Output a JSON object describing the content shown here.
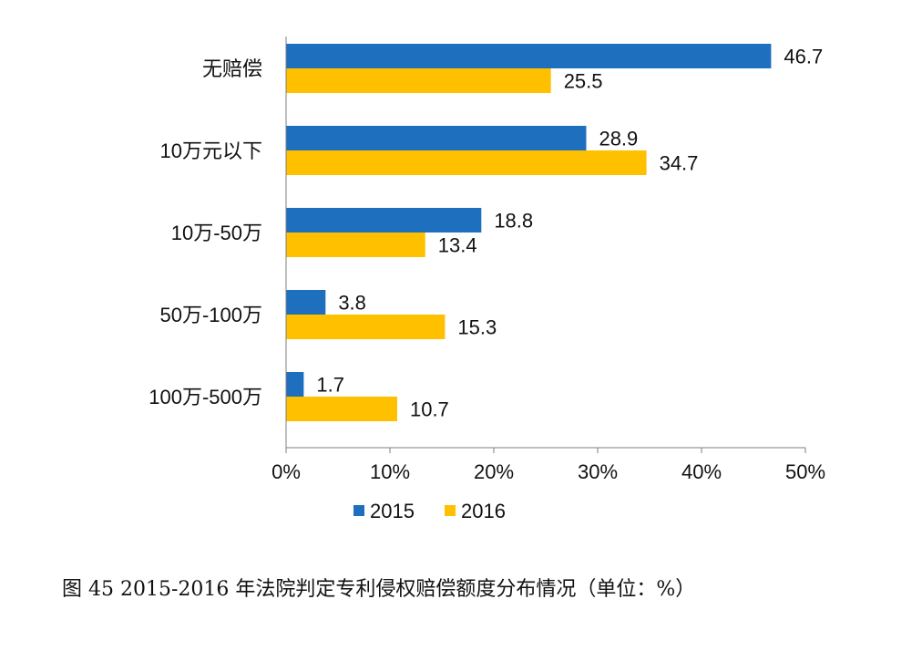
{
  "chart_data": {
    "type": "bar",
    "orientation": "horizontal",
    "categories": [
      "无赔偿",
      "10万元以下",
      "10万-50万",
      "50万-100万",
      "100万-500万"
    ],
    "series": [
      {
        "name": "2015",
        "color": "#1f6fbf",
        "values": [
          46.7,
          28.9,
          18.8,
          3.8,
          1.7
        ]
      },
      {
        "name": "2016",
        "color": "#ffc000",
        "values": [
          25.5,
          34.7,
          13.4,
          15.3,
          10.7
        ]
      }
    ],
    "value_labels": {
      "2015": [
        "46.7",
        "28.9",
        "18.8",
        "3.8",
        "1.7"
      ],
      "2016": [
        "25.5",
        "34.7",
        "13.4",
        "15.3",
        "10.7"
      ]
    },
    "xlim": [
      0,
      50
    ],
    "x_ticks": [
      "0%",
      "10%",
      "20%",
      "30%",
      "40%",
      "50%"
    ],
    "legend": {
      "position": "bottom",
      "items": [
        "2015",
        "2016"
      ]
    },
    "grid": false
  },
  "caption": "图 45 2015-2016 年法院判定专利侵权赔偿额度分布情况（单位：%）"
}
